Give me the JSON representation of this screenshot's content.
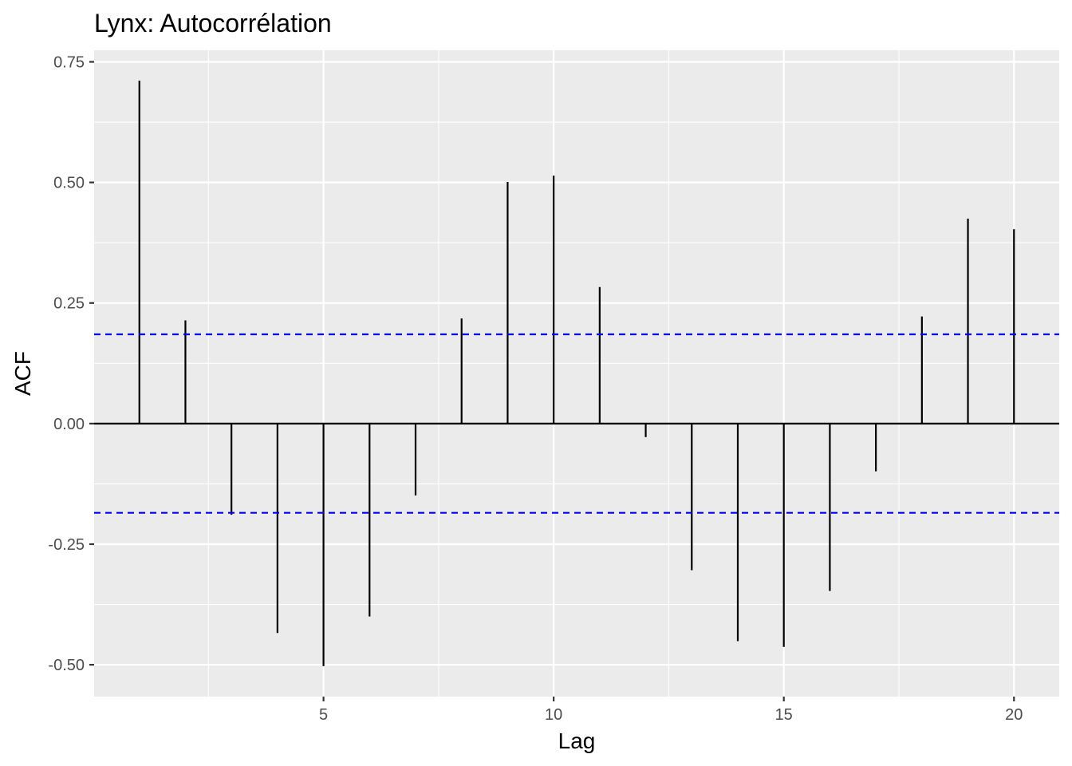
{
  "chart_data": {
    "type": "bar",
    "title": "Lynx: Autocorrélation",
    "xlabel": "Lag",
    "ylabel": "ACF",
    "x": [
      1,
      2,
      3,
      4,
      5,
      6,
      7,
      8,
      9,
      10,
      11,
      12,
      13,
      14,
      15,
      16,
      17,
      18,
      19,
      20
    ],
    "values": [
      0.711,
      0.214,
      -0.189,
      -0.434,
      -0.503,
      -0.4,
      -0.149,
      0.218,
      0.501,
      0.514,
      0.283,
      -0.028,
      -0.304,
      -0.451,
      -0.463,
      -0.347,
      -0.099,
      0.222,
      0.425,
      0.403
    ],
    "confidence_bound": 0.185,
    "xlim": [
      0.0167,
      20.9833
    ],
    "ylim": [
      -0.566,
      0.774
    ],
    "x_ticks": [
      5,
      10,
      15,
      20
    ],
    "x_tick_labels": [
      "5",
      "10",
      "15",
      "20"
    ],
    "y_ticks": [
      -0.5,
      -0.25,
      0,
      0.25,
      0.5,
      0.75
    ],
    "y_tick_labels": [
      "-0.50",
      "-0.25",
      "0.00",
      "0.25",
      "0.50",
      "0.75"
    ],
    "grid": true,
    "colors": {
      "panel": "#ebebeb",
      "grid": "#ffffff",
      "segment": "#000000",
      "confidence_line": "#0000ff",
      "tick_text": "#4d4d4d",
      "tick_mark": "#333333"
    }
  }
}
